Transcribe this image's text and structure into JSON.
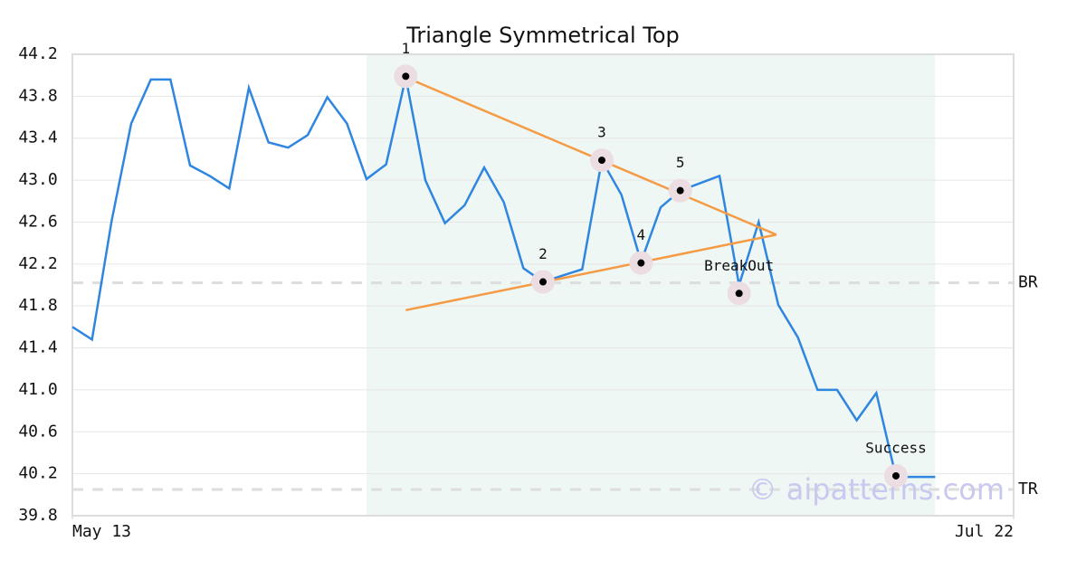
{
  "chart_data": {
    "type": "line",
    "title": "Triangle Symmetrical Top",
    "x": [
      0,
      1,
      2,
      3,
      4,
      5,
      6,
      7,
      8,
      9,
      10,
      11,
      12,
      13,
      14,
      15,
      16,
      17,
      18,
      19,
      20,
      21,
      22,
      23,
      24,
      25,
      26,
      27,
      28,
      29,
      30,
      31,
      32,
      33,
      34,
      35,
      36,
      37,
      38,
      39,
      40,
      41,
      42,
      43,
      44
    ],
    "values": [
      41.6,
      41.48,
      42.61,
      43.54,
      43.96,
      43.96,
      43.14,
      43.04,
      42.92,
      43.88,
      43.36,
      43.31,
      43.43,
      43.79,
      43.54,
      43.01,
      43.15,
      43.98,
      43.0,
      42.59,
      42.76,
      43.12,
      42.79,
      42.16,
      42.03,
      42.09,
      42.15,
      43.19,
      42.86,
      42.22,
      42.74,
      42.9,
      42.97,
      43.04,
      42.0,
      42.6,
      41.81,
      41.5,
      41.0,
      41.0,
      40.71,
      40.97,
      40.17,
      40.17,
      40.17
    ],
    "color": "#2f86e0",
    "xlim": [
      0,
      48
    ],
    "xticks": [
      {
        "value": 0,
        "label": "May 13"
      },
      {
        "value": 48,
        "label": "Jul 22"
      }
    ],
    "ylim": [
      39.8,
      44.2
    ],
    "yticks": [
      39.8,
      40.2,
      40.6,
      {
        "value": 41.0,
        "label": "41.0"
      },
      41.4,
      41.8,
      42.2,
      42.6,
      {
        "value": 43.0,
        "label": "43.0"
      },
      43.4,
      43.8,
      44.2
    ],
    "grid": true,
    "highlight_range": [
      15,
      44
    ],
    "trendlines": [
      {
        "x": [
          17,
          35.9
        ],
        "y": [
          43.98,
          42.48
        ]
      },
      {
        "x": [
          17,
          35.9
        ],
        "y": [
          41.76,
          42.48
        ]
      }
    ],
    "trend_color": "#f59a45",
    "markers": [
      {
        "label": "1",
        "x": 17,
        "y": 43.99
      },
      {
        "label": "2",
        "x": 24,
        "y": 42.03
      },
      {
        "label": "3",
        "x": 27,
        "y": 43.19
      },
      {
        "label": "4",
        "x": 29,
        "y": 42.21
      },
      {
        "label": "5",
        "x": 31,
        "y": 42.9
      },
      {
        "label": "BreakOut",
        "x": 34,
        "y": 41.92
      },
      {
        "label": "Success",
        "x": 42,
        "y": 40.18
      }
    ],
    "levels": [
      {
        "label": "BR",
        "value": 42.02
      },
      {
        "label": "TR",
        "value": 40.05
      }
    ],
    "watermark": "© aipatterns.com"
  }
}
